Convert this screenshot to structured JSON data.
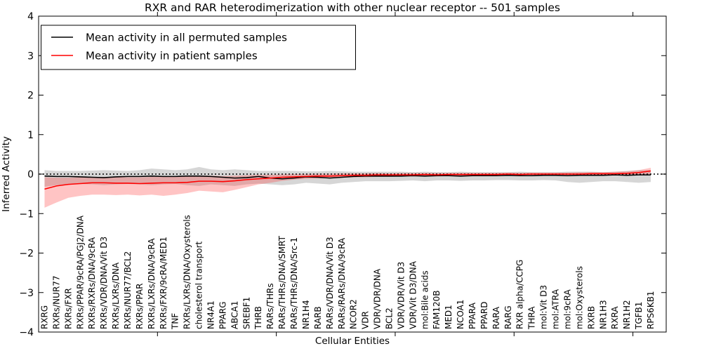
{
  "figure": {
    "title": "RXR and RAR heterodimerization with other nuclear receptor -- 501 samples",
    "xlabel": "Cellular Entities",
    "ylabel": "Inferred Activity"
  },
  "legend": {
    "entries": [
      {
        "label": "Mean activity in all permuted samples",
        "color": "#000000"
      },
      {
        "label": "Mean activity in patient samples",
        "color": "#ff0000"
      }
    ],
    "position": "upper left"
  },
  "chart_data": {
    "type": "line",
    "title": "RXR and RAR heterodimerization with other nuclear receptor -- 501 samples",
    "xlabel": "Cellular Entities",
    "ylabel": "Inferred Activity",
    "ylim": [
      -4,
      4
    ],
    "yticks": [
      -4,
      -3,
      -2,
      -1,
      0,
      1,
      2,
      3,
      4
    ],
    "xtick_positions": [
      10,
      20,
      30,
      40,
      50
    ],
    "grid": false,
    "legend_position": "upper left",
    "zero_line": {
      "y": 0,
      "style": "dotted",
      "color": "#000000"
    },
    "categories": [
      "RXRG",
      "RXRs/NUR77",
      "RXRs/FXR",
      "RXRs/PPAR/9cRA/PGJ2/DNA",
      "RXRs/RXRs/DNA/9cRA",
      "RXRs/VDR/DNA/Vit D3",
      "RXRs/LXRs/DNA",
      "RXRs/NUR77/BCL2",
      "RXRs/PPAR",
      "RXRs/LXRs/DNA/9cRA",
      "RXRs/FXR/9cRA/MED1",
      "TNF",
      "RXRs/LXRs/DNA/Oxysterols",
      "cholesterol transport",
      "NR4A1",
      "PPARG",
      "ABCA1",
      "SREBF1",
      "THRB",
      "RARs/THRs",
      "RARs/THRs/DNA/SMRT",
      "RARs/THRs/DNA/Src-1",
      "NR1H4",
      "RARB",
      "RARs/VDR/DNA/Vit D3",
      "RARs/RARs/DNA/9cRA",
      "NCOR2",
      "VDR",
      "VDR/VDR/DNA",
      "BCL2",
      "VDR/VDR/Vit D3",
      "VDR/Vit D3/DNA",
      "mol:Bile acids",
      "FAM120B",
      "MED1",
      "NCOA1",
      "PPARA",
      "PPARD",
      "RARA",
      "RARG",
      "RXR alpha/CCPG",
      "THRA",
      "mol:Vit D3",
      "mol:ATRA",
      "mol:9cRA",
      "mol:Oxysterols",
      "RXRB",
      "NR1H3",
      "RXRA",
      "NR1H2",
      "TGFB1",
      "RPS6KB1"
    ],
    "series": [
      {
        "name": "Mean activity in all permuted samples",
        "color": "#000000",
        "band_color": "rgba(120,120,120,0.30)",
        "values": [
          -0.05,
          -0.06,
          -0.06,
          -0.07,
          -0.08,
          -0.09,
          -0.07,
          -0.06,
          -0.06,
          -0.05,
          -0.06,
          -0.06,
          -0.05,
          -0.05,
          -0.06,
          -0.08,
          -0.1,
          -0.09,
          -0.06,
          -0.1,
          -0.12,
          -0.1,
          -0.07,
          -0.08,
          -0.1,
          -0.08,
          -0.06,
          -0.05,
          -0.05,
          -0.05,
          -0.05,
          -0.04,
          -0.05,
          -0.04,
          -0.04,
          -0.05,
          -0.04,
          -0.04,
          -0.04,
          -0.03,
          -0.04,
          -0.04,
          -0.03,
          -0.03,
          -0.04,
          -0.03,
          -0.03,
          -0.03,
          -0.02,
          -0.03,
          -0.02,
          -0.02
        ],
        "band_upper": [
          0.1,
          0.08,
          0.08,
          0.08,
          0.09,
          0.1,
          0.09,
          0.08,
          0.1,
          0.14,
          0.12,
          0.1,
          0.12,
          0.18,
          0.12,
          0.1,
          0.12,
          0.1,
          0.08,
          0.08,
          0.08,
          0.08,
          0.07,
          0.07,
          0.08,
          0.07,
          0.06,
          0.06,
          0.06,
          0.06,
          0.06,
          0.05,
          0.06,
          0.05,
          0.05,
          0.06,
          0.05,
          0.05,
          0.05,
          0.05,
          0.06,
          0.05,
          0.05,
          0.05,
          0.06,
          0.06,
          0.06,
          0.05,
          0.06,
          0.08,
          0.1,
          0.1
        ],
        "band_lower": [
          -0.32,
          -0.28,
          -0.26,
          -0.25,
          -0.26,
          -0.28,
          -0.26,
          -0.25,
          -0.26,
          -0.28,
          -0.26,
          -0.25,
          -0.28,
          -0.3,
          -0.26,
          -0.28,
          -0.3,
          -0.26,
          -0.24,
          -0.26,
          -0.28,
          -0.26,
          -0.22,
          -0.24,
          -0.26,
          -0.22,
          -0.2,
          -0.18,
          -0.18,
          -0.18,
          -0.17,
          -0.16,
          -0.18,
          -0.16,
          -0.16,
          -0.17,
          -0.16,
          -0.16,
          -0.15,
          -0.15,
          -0.16,
          -0.16,
          -0.15,
          -0.16,
          -0.2,
          -0.22,
          -0.2,
          -0.18,
          -0.18,
          -0.2,
          -0.22,
          -0.2
        ]
      },
      {
        "name": "Mean activity in patient samples",
        "color": "#ff0000",
        "band_color": "rgba(255,60,60,0.30)",
        "values": [
          -0.38,
          -0.3,
          -0.26,
          -0.24,
          -0.22,
          -0.22,
          -0.23,
          -0.23,
          -0.24,
          -0.23,
          -0.22,
          -0.22,
          -0.21,
          -0.18,
          -0.18,
          -0.19,
          -0.17,
          -0.14,
          -0.12,
          -0.1,
          -0.08,
          -0.07,
          -0.06,
          -0.05,
          -0.05,
          -0.04,
          -0.03,
          -0.03,
          -0.02,
          -0.02,
          -0.02,
          -0.02,
          -0.01,
          -0.02,
          -0.01,
          -0.01,
          -0.01,
          -0.01,
          -0.01,
          0.0,
          -0.01,
          0.0,
          0.0,
          0.0,
          0.0,
          0.0,
          0.01,
          0.01,
          0.01,
          0.02,
          0.04,
          0.08
        ],
        "band_upper": [
          -0.08,
          -0.09,
          -0.09,
          -0.08,
          -0.07,
          -0.07,
          -0.08,
          -0.08,
          -0.08,
          -0.07,
          -0.06,
          -0.06,
          -0.05,
          -0.04,
          -0.04,
          -0.05,
          -0.04,
          -0.03,
          -0.02,
          -0.02,
          -0.01,
          0.0,
          0.0,
          0.01,
          0.01,
          0.02,
          0.02,
          0.02,
          0.03,
          0.02,
          0.03,
          0.03,
          0.03,
          0.03,
          0.03,
          0.03,
          0.03,
          0.03,
          0.03,
          0.04,
          0.03,
          0.04,
          0.04,
          0.04,
          0.04,
          0.05,
          0.05,
          0.05,
          0.06,
          0.07,
          0.1,
          0.16
        ],
        "band_lower": [
          -0.85,
          -0.72,
          -0.6,
          -0.55,
          -0.52,
          -0.52,
          -0.53,
          -0.52,
          -0.54,
          -0.52,
          -0.55,
          -0.52,
          -0.48,
          -0.42,
          -0.44,
          -0.46,
          -0.4,
          -0.33,
          -0.26,
          -0.22,
          -0.17,
          -0.14,
          -0.12,
          -0.11,
          -0.1,
          -0.09,
          -0.08,
          -0.08,
          -0.07,
          -0.07,
          -0.06,
          -0.06,
          -0.06,
          -0.06,
          -0.05,
          -0.06,
          -0.05,
          -0.05,
          -0.05,
          -0.04,
          -0.05,
          -0.04,
          -0.04,
          -0.04,
          -0.04,
          -0.04,
          -0.03,
          -0.03,
          -0.03,
          -0.02,
          -0.01,
          0.0
        ]
      }
    ]
  }
}
